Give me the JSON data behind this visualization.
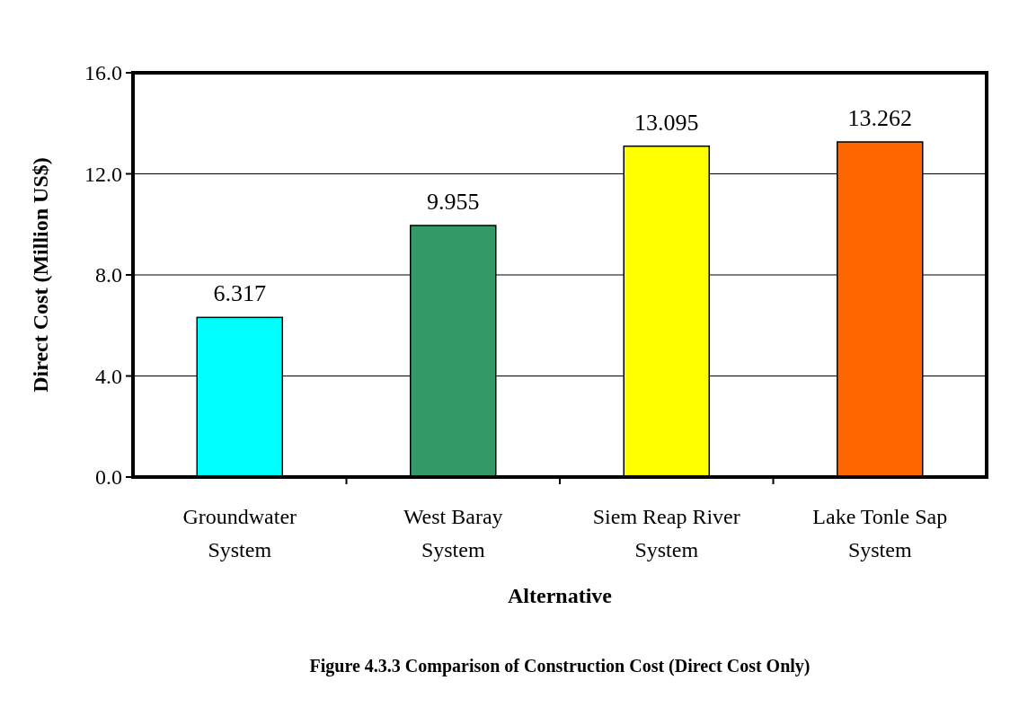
{
  "chart_data": {
    "type": "bar",
    "title": "Figure 4.3.3 Comparison of Construction Cost (Direct Cost Only)",
    "xlabel": "Alternative",
    "ylabel": "Direct Cost (Million US$)",
    "categories": [
      "Groundwater System",
      "West Baray System",
      "Siem Reap River System",
      "Lake Tonle Sap System"
    ],
    "values": [
      6.317,
      9.955,
      13.095,
      13.262
    ],
    "colors": [
      "#00ffff",
      "#339966",
      "#ffff00",
      "#ff6600"
    ],
    "ylim": [
      0,
      16
    ],
    "yticks": [
      {
        "value": 0,
        "label": "0.0"
      },
      {
        "value": 4,
        "label": "4.0"
      },
      {
        "value": 8,
        "label": "8.0"
      },
      {
        "value": 12,
        "label": "12.0"
      },
      {
        "value": 16,
        "label": "16.0"
      }
    ],
    "grid": "y",
    "data_labels": true
  }
}
